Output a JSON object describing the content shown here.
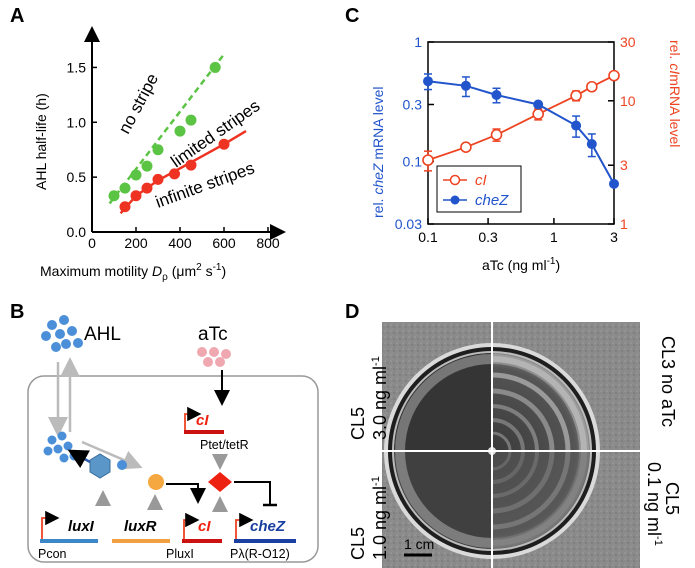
{
  "panels": {
    "a": "A",
    "b": "B",
    "c": "C",
    "d": "D"
  },
  "panel_a": {
    "regions": {
      "no_stripe": "no stripe",
      "limited": "limited stripes",
      "infinite": "infinite stripes"
    },
    "ylabel": "AHL half-life (h)",
    "xlabel_prefix": "Maximum motility",
    "xlabel_symbol": "D",
    "xlabel_subscript": "ρ",
    "xlabel_units": "(μm",
    "xlabel_units_sup": "2",
    "xlabel_units_rest": " s",
    "xlabel_units_sup2": "-1",
    "xlabel_close": ")",
    "colors": {
      "green": "#5cc444",
      "red": "#ee3322"
    }
  },
  "panel_c": {
    "ylabel_left_pre": "rel. ",
    "ylabel_left_gene": "cheZ",
    "ylabel_left_post": " mRNA level",
    "ylabel_right_pre": "rel. ",
    "ylabel_right_gene": "cI",
    "ylabel_right_post": "mRNA level",
    "xlabel": "aTc (ng ml",
    "xlabel_sup": "-1",
    "xlabel_close": ")",
    "legend": {
      "ci": "cI",
      "chez": "cheZ"
    },
    "colors": {
      "blue": "#2255cc",
      "red": "#ee4422"
    }
  },
  "panel_b": {
    "ahl": "AHL",
    "atc": "aTc",
    "genes": {
      "luxi": "luxI",
      "luxr": "luxR",
      "ci_bottom": "cI",
      "chez": "cheZ",
      "ci_top": "cI"
    },
    "promoters": {
      "pcon": "Pcon",
      "pluxi": "PluxI",
      "plambda": "Pλ(R-O12)",
      "ptet": "Ptet/tetR"
    }
  },
  "panel_d": {
    "tl": [
      "CL5",
      "3.0 ng ml",
      "-1"
    ],
    "tr": [
      "CL3 no aTc"
    ],
    "bl": [
      "CL5",
      "1.0 ng ml",
      "-1"
    ],
    "br": [
      "CL5",
      "0.1 ng ml",
      "-1"
    ],
    "scale": "1 cm"
  },
  "chart_data": [
    {
      "type": "scatter",
      "panel": "A",
      "xlim": [
        0,
        800
      ],
      "ylim": [
        0.0,
        1.75
      ],
      "xticks": [
        0,
        200,
        400,
        600,
        800
      ],
      "yticks": [
        0.0,
        0.5,
        1.0,
        1.5
      ],
      "series": [
        {
          "name": "no stripe / limited stripes boundary",
          "x": [
            100,
            150,
            200,
            250,
            300,
            400,
            450,
            560
          ],
          "y": [
            0.33,
            0.4,
            0.52,
            0.6,
            0.75,
            0.92,
            1.02,
            1.5
          ]
        },
        {
          "name": "limited / infinite stripes boundary",
          "x": [
            150,
            200,
            250,
            300,
            375,
            450,
            600
          ],
          "y": [
            0.23,
            0.33,
            0.4,
            0.48,
            0.53,
            0.61,
            0.8
          ]
        }
      ]
    },
    {
      "type": "line",
      "panel": "C",
      "x_scale": "log",
      "y_scale": "log",
      "xlim": [
        0.1,
        3
      ],
      "ylim_left": [
        0.03,
        1
      ],
      "ylim_right": [
        1,
        30
      ],
      "xticks": [
        "0.1",
        "0.3",
        "1",
        "3"
      ],
      "yticks_left": [
        "0.03",
        "0.1",
        "0.3",
        "1"
      ],
      "yticks_right": [
        "1",
        "3",
        "10",
        "30"
      ],
      "series": [
        {
          "name": "cheZ",
          "axis": "left",
          "x": [
            0.1,
            0.2,
            0.35,
            0.75,
            1.5,
            2.0,
            3.0
          ],
          "y": [
            0.47,
            0.43,
            0.36,
            0.3,
            0.2,
            0.14,
            0.065
          ]
        },
        {
          "name": "cI",
          "axis": "right",
          "x": [
            0.1,
            0.2,
            0.35,
            0.75,
            1.5,
            2.0,
            3.0
          ],
          "y": [
            3.3,
            4.2,
            5.3,
            7.8,
            11,
            13,
            16
          ]
        }
      ]
    }
  ]
}
